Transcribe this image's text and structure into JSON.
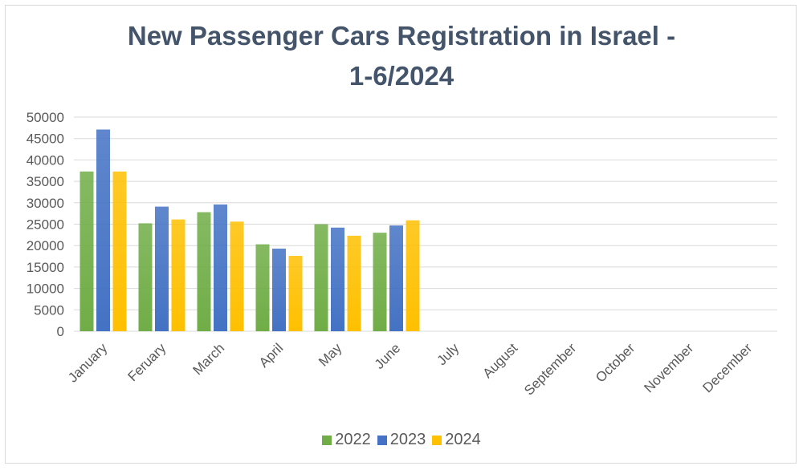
{
  "chart_data": {
    "type": "bar",
    "title_line1": "New Passenger Cars Registration in Israel -",
    "title_line2": "1-6/2024",
    "categories": [
      "January",
      "Feruary",
      "March",
      "April",
      "May",
      "June",
      "July",
      "August",
      "September",
      "October",
      "November",
      "December"
    ],
    "series": [
      {
        "name": "2022",
        "color": "#70ad47",
        "values": [
          37300,
          25200,
          27800,
          20300,
          25000,
          23000,
          null,
          null,
          null,
          null,
          null,
          null
        ]
      },
      {
        "name": "2023",
        "color": "#4472c4",
        "values": [
          47100,
          29100,
          29600,
          19300,
          24200,
          24700,
          null,
          null,
          null,
          null,
          null,
          null
        ]
      },
      {
        "name": "2024",
        "color": "#ffc000",
        "values": [
          37300,
          26100,
          25600,
          17600,
          22300,
          25900,
          null,
          null,
          null,
          null,
          null,
          null
        ]
      }
    ],
    "y_ticks": [
      "0",
      "5000",
      "10000",
      "15000",
      "20000",
      "25000",
      "30000",
      "35000",
      "40000",
      "45000",
      "50000"
    ],
    "ylim": [
      0,
      50000
    ],
    "grid": true,
    "legend_position": "bottom"
  }
}
